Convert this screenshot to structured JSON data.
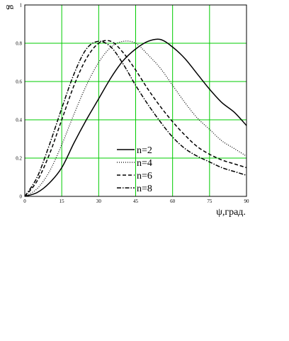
{
  "chart_data": {
    "type": "line",
    "title": "",
    "xlabel": "ψ,град.",
    "ylabel": "g",
    "xlim": [
      0,
      90
    ],
    "ylim": [
      0,
      1
    ],
    "x_ticks": [
      "0",
      "15",
      "30",
      "45",
      "60",
      "75",
      "90"
    ],
    "y_ticks": [
      "0",
      "0.2",
      "0.4",
      "0.6",
      "0.8",
      "1"
    ],
    "grid": true,
    "grid_color": "#00cc00",
    "legend_position": "lower-center",
    "x": [
      0,
      5,
      10,
      15,
      20,
      25,
      30,
      35,
      40,
      45,
      50,
      55,
      60,
      65,
      70,
      75,
      80,
      85,
      90
    ],
    "series": [
      {
        "name": "n=2",
        "style": "solid",
        "values": [
          0,
          0.02,
          0.07,
          0.15,
          0.28,
          0.4,
          0.51,
          0.62,
          0.71,
          0.77,
          0.81,
          0.82,
          0.78,
          0.72,
          0.64,
          0.56,
          0.49,
          0.44,
          0.37
        ]
      },
      {
        "name": "n=4",
        "style": "dotted",
        "values": [
          0,
          0.04,
          0.13,
          0.27,
          0.43,
          0.58,
          0.7,
          0.78,
          0.81,
          0.8,
          0.74,
          0.67,
          0.58,
          0.49,
          0.41,
          0.35,
          0.29,
          0.25,
          0.21
        ]
      },
      {
        "name": "n=6",
        "style": "dashed",
        "values": [
          0,
          0.08,
          0.22,
          0.4,
          0.58,
          0.72,
          0.8,
          0.81,
          0.75,
          0.66,
          0.56,
          0.47,
          0.39,
          0.32,
          0.26,
          0.22,
          0.19,
          0.17,
          0.15
        ]
      },
      {
        "name": "n=8",
        "style": "dashdot",
        "values": [
          0,
          0.1,
          0.27,
          0.46,
          0.64,
          0.77,
          0.81,
          0.78,
          0.69,
          0.58,
          0.48,
          0.39,
          0.31,
          0.25,
          0.21,
          0.18,
          0.15,
          0.13,
          0.11
        ]
      }
    ]
  }
}
